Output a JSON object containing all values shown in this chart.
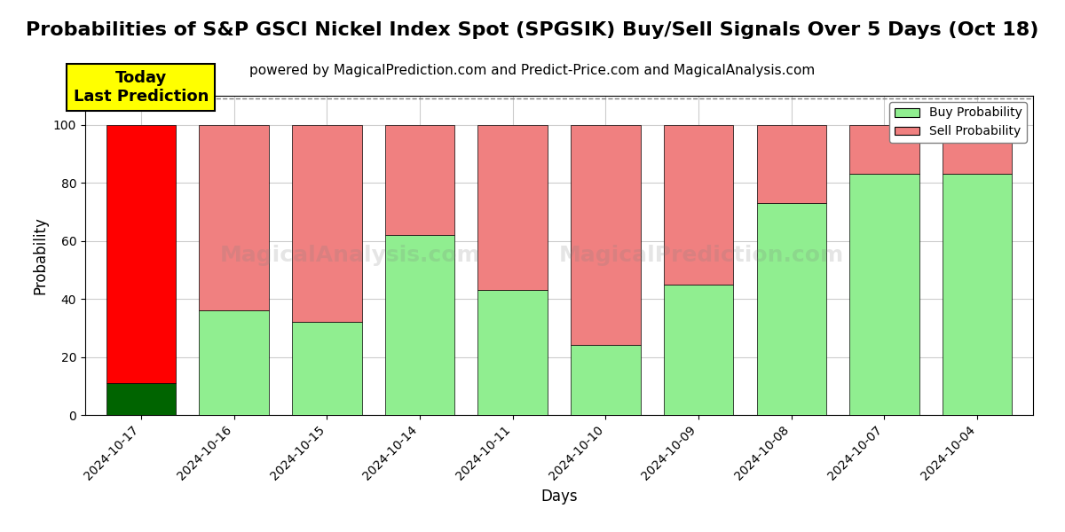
{
  "title": "Probabilities of S&P GSCI Nickel Index Spot (SPGSIK) Buy/Sell Signals Over 5 Days (Oct 18)",
  "subtitle": "powered by MagicalPrediction.com and Predict-Price.com and MagicalAnalysis.com",
  "xlabel": "Days",
  "ylabel": "Probability",
  "categories": [
    "2024-10-17",
    "2024-10-16",
    "2024-10-15",
    "2024-10-14",
    "2024-10-11",
    "2024-10-10",
    "2024-10-09",
    "2024-10-08",
    "2024-10-07",
    "2024-10-04"
  ],
  "buy_values": [
    11,
    36,
    32,
    62,
    43,
    24,
    45,
    73,
    83,
    83
  ],
  "sell_values": [
    89,
    64,
    68,
    38,
    57,
    76,
    55,
    27,
    17,
    17
  ],
  "buy_color_normal": "#90EE90",
  "buy_color_today": "#006400",
  "sell_color_normal": "#F08080",
  "sell_color_today": "#FF0000",
  "today_annotation_text": "Today\nLast Prediction",
  "today_annotation_bg": "#FFFF00",
  "ylim": [
    0,
    110
  ],
  "yticks": [
    0,
    20,
    40,
    60,
    80,
    100
  ],
  "dashed_line_y": 109,
  "background_color": "#ffffff",
  "grid_color": "#cccccc",
  "title_fontsize": 16,
  "subtitle_fontsize": 11,
  "legend_labels": [
    "Buy Probability",
    "Sell Probability"
  ]
}
